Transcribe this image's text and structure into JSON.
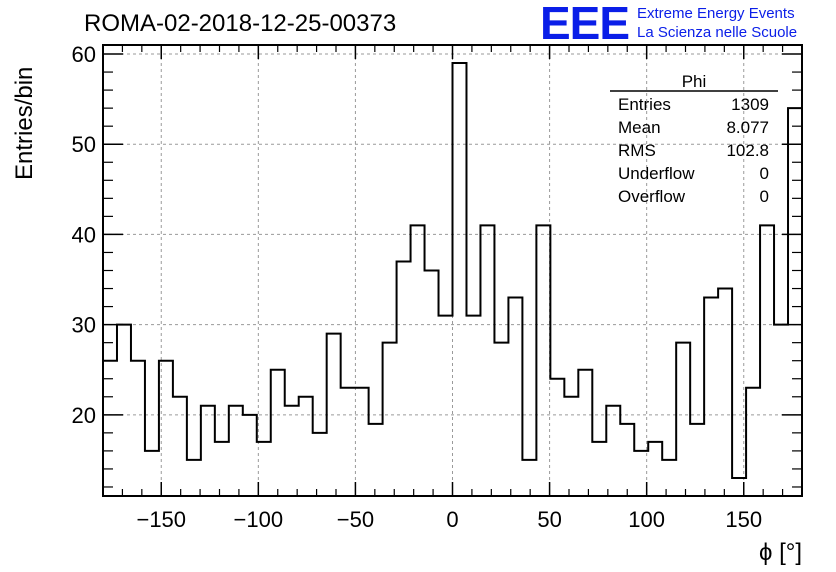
{
  "header": {
    "title": "ROMA-02-2018-12-25-00373",
    "logo_text": "EEE",
    "logo_line1": "Extreme Energy Events",
    "logo_line2": "La Scienza nelle Scuole",
    "logo_color": "#0a1ee8"
  },
  "stats_box": {
    "name": "Phi",
    "rows": [
      {
        "label": "Entries",
        "value": "1309"
      },
      {
        "label": "Mean",
        "value": "8.077"
      },
      {
        "label": "RMS",
        "value": "102.8"
      },
      {
        "label": "Underflow",
        "value": "0"
      },
      {
        "label": "Overflow",
        "value": "0"
      }
    ]
  },
  "chart_data": {
    "type": "bar",
    "style": "step-histogram",
    "xlabel": "ϕ [°]",
    "ylabel": "Entries/bin",
    "xlim": [
      -180,
      180
    ],
    "ylim": [
      11,
      61
    ],
    "bin_width": 7.2,
    "x_ticks": [
      -150,
      -100,
      -50,
      0,
      50,
      100,
      150
    ],
    "x_tick_labels": [
      "−150",
      "−100",
      "−50",
      "0",
      "50",
      "100",
      "150"
    ],
    "y_ticks": [
      20,
      30,
      40,
      50,
      60
    ],
    "y_tick_labels": [
      "20",
      "30",
      "40",
      "50",
      "60"
    ],
    "grid": true,
    "line_color": "#000000",
    "values": [
      26,
      30,
      26,
      16,
      26,
      22,
      15,
      21,
      17,
      21,
      20,
      17,
      25,
      21,
      22,
      18,
      29,
      23,
      23,
      19,
      28,
      37,
      41,
      36,
      31,
      59,
      31,
      41,
      28,
      33,
      15,
      41,
      24,
      22,
      25,
      17,
      21,
      19,
      16,
      17,
      15,
      28,
      19,
      33,
      34,
      13,
      23,
      41,
      30,
      54
    ]
  }
}
